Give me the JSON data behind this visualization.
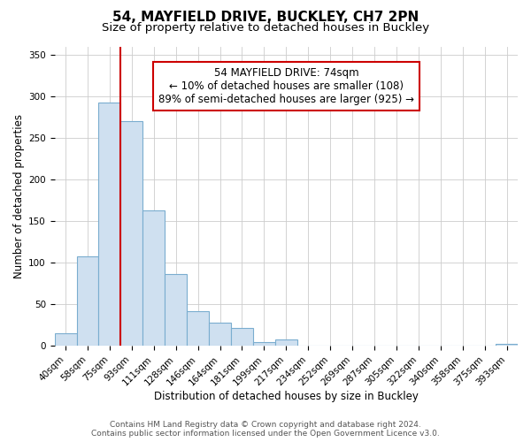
{
  "title": "54, MAYFIELD DRIVE, BUCKLEY, CH7 2PN",
  "subtitle": "Size of property relative to detached houses in Buckley",
  "xlabel": "Distribution of detached houses by size in Buckley",
  "ylabel": "Number of detached properties",
  "categories": [
    "40sqm",
    "58sqm",
    "75sqm",
    "93sqm",
    "111sqm",
    "128sqm",
    "146sqm",
    "164sqm",
    "181sqm",
    "199sqm",
    "217sqm",
    "234sqm",
    "252sqm",
    "269sqm",
    "287sqm",
    "305sqm",
    "322sqm",
    "340sqm",
    "358sqm",
    "375sqm",
    "393sqm"
  ],
  "values": [
    15,
    108,
    293,
    270,
    163,
    86,
    42,
    28,
    21,
    5,
    8,
    0,
    0,
    0,
    0,
    0,
    0,
    0,
    0,
    0,
    2
  ],
  "bar_color": "#cfe0f0",
  "bar_edge_color": "#7aadcf",
  "highlight_bar_index": 2,
  "vline_x_index": 2,
  "vline_color": "#cc0000",
  "ylim": [
    0,
    360
  ],
  "yticks": [
    0,
    50,
    100,
    150,
    200,
    250,
    300,
    350
  ],
  "annotation_text": "54 MAYFIELD DRIVE: 74sqm\n← 10% of detached houses are smaller (108)\n89% of semi-detached houses are larger (925) →",
  "annotation_box_color": "#ffffff",
  "annotation_box_edge_color": "#cc0000",
  "footer_line1": "Contains HM Land Registry data © Crown copyright and database right 2024.",
  "footer_line2": "Contains public sector information licensed under the Open Government Licence v3.0.",
  "background_color": "#ffffff",
  "grid_color": "#cccccc",
  "title_fontsize": 11,
  "subtitle_fontsize": 9.5,
  "axis_label_fontsize": 8.5,
  "tick_fontsize": 7.5,
  "annotation_fontsize": 8.5,
  "footer_fontsize": 6.5
}
